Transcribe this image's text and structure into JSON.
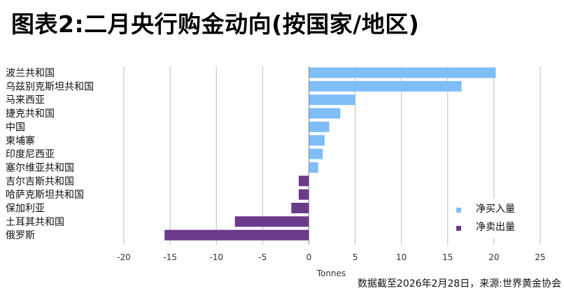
{
  "title": "图表2:二月央行购金动向(按国家/地区)",
  "footnote": "数据截至2026年2月28日，来源:世界黄金协会",
  "colors": {
    "buy": "#7fbdf6",
    "sell": "#6b3a8a",
    "grid": "#bdbdbd",
    "axis": "#8a8a8a"
  },
  "chart_data": {
    "type": "bar",
    "orientation": "horizontal",
    "categories": [
      "波兰共和国",
      "乌兹别克斯坦共和国",
      "马来西亚",
      "捷克共和国",
      "中国",
      "柬埔寨",
      "印度尼西亚",
      "塞尔维亚共和国",
      "吉尔吉斯共和国",
      "哈萨克斯坦共和国",
      "保加利亚",
      "土耳其共和国",
      "俄罗斯"
    ],
    "values": [
      20.2,
      16.5,
      5.0,
      3.4,
      2.2,
      1.7,
      1.5,
      1.0,
      -1.1,
      -1.1,
      -1.9,
      -8.0,
      -15.6
    ],
    "xlabel": "Tonnes",
    "xlim": [
      -20,
      25
    ],
    "xticks": [
      -20,
      -15,
      -10,
      -5,
      0,
      5,
      10,
      15,
      20,
      25
    ],
    "xtick_labels": [
      "-20",
      "-15",
      "-10",
      "-5",
      "0",
      "5",
      "10",
      "15",
      "20",
      "25"
    ],
    "grid": "vertical",
    "legend_position": "bottom-right",
    "legend": [
      {
        "label": "净买入量",
        "color": "#7fbdf6"
      },
      {
        "label": "净卖出量",
        "color": "#6b3a8a"
      }
    ]
  }
}
